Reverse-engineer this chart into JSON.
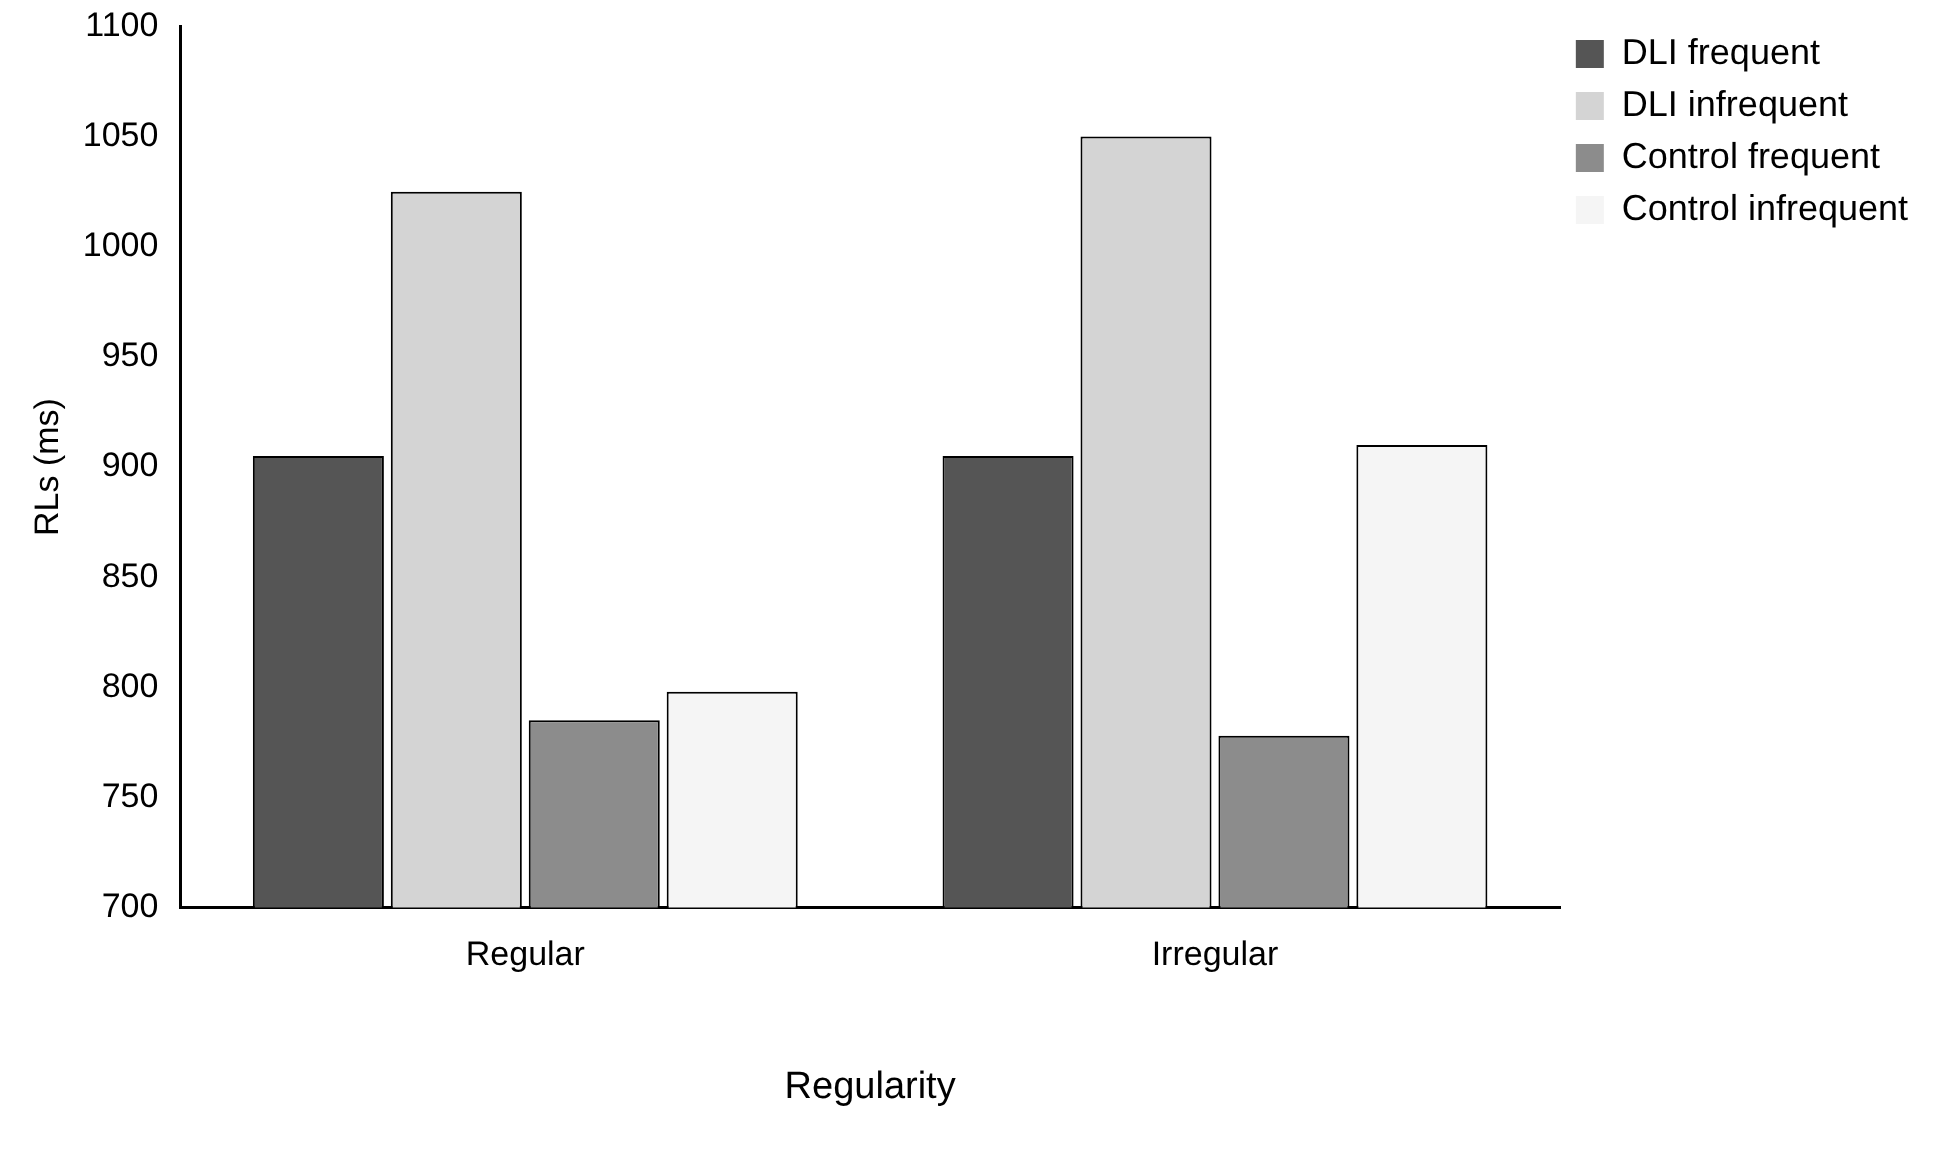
{
  "chart_data": {
    "type": "bar",
    "xlabel": "Regularity",
    "ylabel": "RLs (ms)",
    "categories": [
      "Regular",
      "Irregular"
    ],
    "series": [
      {
        "name": "DLI frequent",
        "color": "#555555",
        "values": [
          905,
          905
        ]
      },
      {
        "name": "DLI infrequent",
        "color": "#d4d4d4",
        "values": [
          1025,
          1050
        ]
      },
      {
        "name": "Control frequent",
        "color": "#8c8c8c",
        "values": [
          785,
          778
        ]
      },
      {
        "name": "Control infrequent",
        "color": "#f5f5f5",
        "values": [
          798,
          910
        ]
      }
    ],
    "ylim": [
      700,
      1100
    ],
    "yticks": [
      700,
      750,
      800,
      850,
      900,
      950,
      1000,
      1050,
      1100
    ],
    "grid": false,
    "legend": "top right"
  }
}
